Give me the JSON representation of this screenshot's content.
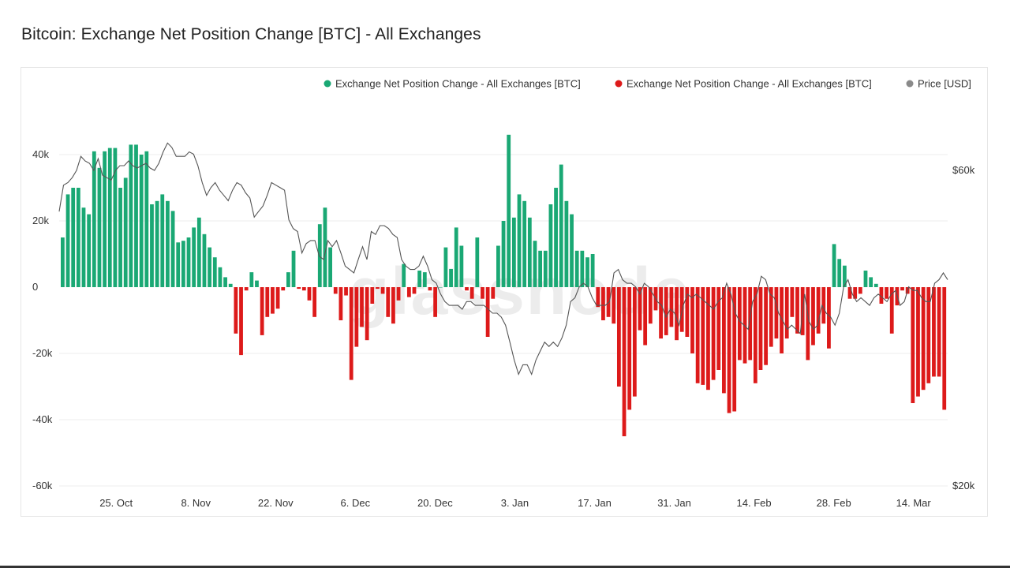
{
  "page": {
    "title": "Bitcoin: Exchange Net Position Change [BTC] - All Exchanges",
    "watermark": "glassnode"
  },
  "chart_data": {
    "type": "bar",
    "title": "Bitcoin: Exchange Net Position Change [BTC] - All Exchanges",
    "legend_position": "top-right",
    "legend": [
      {
        "label": "Exchange Net Position Change - All Exchanges [BTC]",
        "color": "#1aa874"
      },
      {
        "label": "Exchange Net Position Change - All Exchanges [BTC]",
        "color": "#dd1a1a"
      },
      {
        "label": "Price [USD]",
        "color": "#8a8a8a"
      }
    ],
    "colors": {
      "positive": "#1aa874",
      "negative": "#dd1a1a",
      "price": "#555555",
      "grid": "#ececec"
    },
    "grid": true,
    "y_left": {
      "min": -60000,
      "max": 40000,
      "ticks": [
        40000,
        20000,
        0,
        -20000,
        -40000,
        -60000
      ],
      "tick_labels": [
        "40k",
        "20k",
        "0",
        "-20k",
        "-40k",
        "-60k"
      ]
    },
    "y_right": {
      "scale": "log",
      "min": 20000,
      "max": 60000,
      "ticks": [
        60000,
        20000
      ],
      "tick_labels": [
        "$60k",
        "$20k"
      ]
    },
    "x": {
      "start": "2021-10-15",
      "end": "2022-03-20",
      "ticks": [
        "2021-10-25",
        "2021-11-08",
        "2021-11-22",
        "2021-12-06",
        "2021-12-20",
        "2022-01-03",
        "2022-01-17",
        "2022-01-31",
        "2022-02-14",
        "2022-02-28",
        "2022-03-14"
      ],
      "tick_labels": [
        "25. Oct",
        "8. Nov",
        "22. Nov",
        "6. Dec",
        "20. Dec",
        "3. Jan",
        "17. Jan",
        "31. Jan",
        "14. Feb",
        "28. Feb",
        "14. Mar"
      ]
    },
    "net_position_change_btc": [
      15000,
      28000,
      30000,
      30000,
      24000,
      22000,
      41000,
      36000,
      41000,
      42000,
      42000,
      30000,
      33000,
      43000,
      43000,
      40000,
      41000,
      25000,
      26000,
      28000,
      26000,
      23000,
      13500,
      14000,
      15000,
      18000,
      21000,
      16000,
      12000,
      9000,
      6000,
      3000,
      1000,
      -14000,
      -20500,
      -1000,
      4500,
      2000,
      -14500,
      -9000,
      -8000,
      -6500,
      -1000,
      4500,
      11000,
      -500,
      -1000,
      -4000,
      -9000,
      19000,
      24000,
      12000,
      -2000,
      -10000,
      -2500,
      -28000,
      -18000,
      -12000,
      -16000,
      -5000,
      -500,
      -2000,
      -9000,
      -11000,
      -4000,
      7000,
      -3000,
      -2000,
      5000,
      4500,
      -1000,
      -9000,
      0,
      12000,
      5500,
      18000,
      12500,
      -1000,
      -3500,
      15000,
      -3500,
      -15000,
      -3500,
      12500,
      20000,
      46000,
      21000,
      28000,
      26000,
      21000,
      14000,
      11000,
      11000,
      25000,
      30000,
      37000,
      26000,
      22000,
      11000,
      11000,
      9000,
      10000,
      -6000,
      -10000,
      -9000,
      -11000,
      -30000,
      -45000,
      -37000,
      -33000,
      -13000,
      -17500,
      -11000,
      -7000,
      -15500,
      -14500,
      -12000,
      -16000,
      -13500,
      -15000,
      -20000,
      -29000,
      -29500,
      -31000,
      -28000,
      -25000,
      -32000,
      -38000,
      -37500,
      -22000,
      -23000,
      -22000,
      -29000,
      -25000,
      -23500,
      -18000,
      -15500,
      -20000,
      -15500,
      -9000,
      -14000,
      -14500,
      -22000,
      -17500,
      -14000,
      -11000,
      -18500,
      13000,
      8500,
      6500,
      -3500,
      -3500,
      -2000,
      5000,
      3000,
      1000,
      -5000,
      -3500,
      -14000,
      -5500,
      -1000,
      -2000,
      -35000,
      -33000,
      -31000,
      -29000,
      -27000,
      -27000,
      -37000
    ],
    "price_usd": [
      52000,
      57000,
      57500,
      58500,
      60000,
      63000,
      62000,
      61500,
      60000,
      62500,
      59000,
      58500,
      58000,
      60000,
      61000,
      61000,
      62000,
      61000,
      60500,
      61000,
      61500,
      60500,
      60000,
      61500,
      64000,
      66000,
      65000,
      63000,
      63000,
      63000,
      64000,
      63500,
      61000,
      57500,
      55000,
      56500,
      57500,
      56000,
      55000,
      54000,
      56000,
      57500,
      57000,
      55500,
      54500,
      51000,
      52000,
      53000,
      55000,
      57500,
      57000,
      56500,
      56000,
      50500,
      49000,
      48500,
      45000,
      46500,
      47000,
      47000,
      44500,
      44000,
      47000,
      46000,
      47000,
      45000,
      43000,
      42500,
      42000,
      44000,
      46000,
      44000,
      48500,
      48000,
      49500,
      49500,
      49000,
      48000,
      47500,
      44000,
      43000,
      42500,
      42500,
      43000,
      44500,
      43000,
      41000,
      40500,
      39000,
      38000,
      37500,
      37500,
      37500,
      37000,
      38000,
      38000,
      37500,
      37500,
      37500,
      37000,
      36500,
      36500,
      36000,
      35000,
      33000,
      31000,
      29500,
      30500,
      30500,
      29500,
      31000,
      32000,
      33000,
      32500,
      33000,
      32500,
      33500,
      35000,
      38000,
      38500,
      40000,
      40500,
      40000,
      38500,
      37500,
      37500,
      37500,
      38000,
      42000,
      42500,
      41000,
      40500,
      40500,
      40000,
      39000,
      40500,
      40000,
      39000,
      38000,
      37500,
      36000,
      37000,
      36500,
      35000,
      37500,
      39000,
      38500,
      39000,
      38500,
      38000,
      37500,
      37000,
      38000,
      38500,
      40500,
      39000,
      36500,
      35500,
      35000,
      34500,
      38000,
      39000,
      41500,
      41000,
      39000,
      38500,
      36500,
      35500,
      34500,
      35000,
      34500,
      34000,
      39000,
      35500,
      34500,
      35000,
      37500,
      36500,
      36000,
      35000,
      36500,
      40000,
      41000,
      39000,
      38000,
      38500,
      38000,
      37500,
      38500,
      39000,
      38500,
      38000,
      39000,
      39500,
      37500,
      38000,
      40000,
      39500,
      39500,
      38500,
      38000,
      38000,
      40500,
      41000,
      42000,
      41000
    ]
  }
}
